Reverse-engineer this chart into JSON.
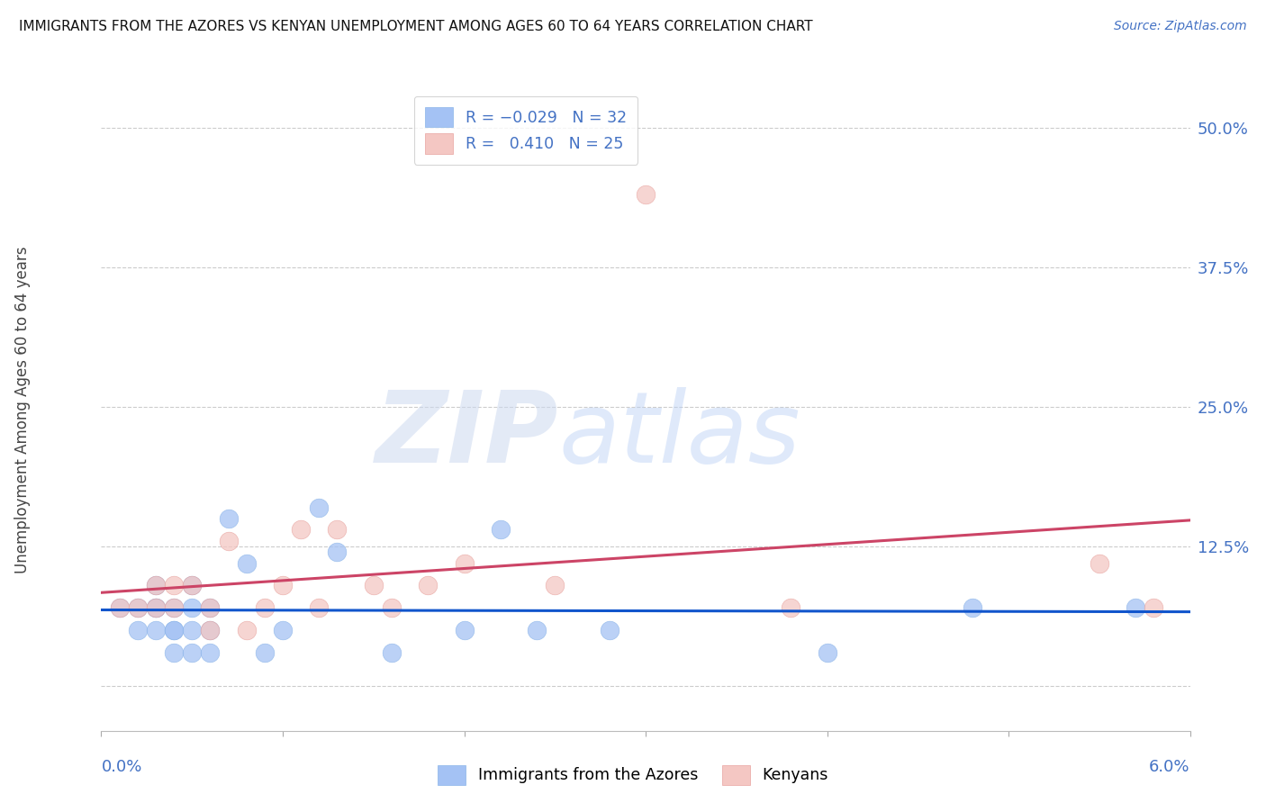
{
  "title": "IMMIGRANTS FROM THE AZORES VS KENYAN UNEMPLOYMENT AMONG AGES 60 TO 64 YEARS CORRELATION CHART",
  "source": "Source: ZipAtlas.com",
  "ylabel": "Unemployment Among Ages 60 to 64 years",
  "yticks": [
    0.0,
    0.125,
    0.25,
    0.375,
    0.5
  ],
  "ytick_labels": [
    "",
    "12.5%",
    "25.0%",
    "37.5%",
    "50.0%"
  ],
  "xlim": [
    0.0,
    0.06
  ],
  "ylim": [
    -0.04,
    0.535
  ],
  "R_blue": -0.029,
  "N_blue": 32,
  "R_pink": 0.41,
  "N_pink": 25,
  "blue_color": "#a4c2f4",
  "pink_color": "#f4c7c3",
  "blue_line_color": "#1155cc",
  "pink_line_color": "#cc4466",
  "legend_label_blue": "Immigrants from the Azores",
  "legend_label_pink": "Kenyans",
  "blue_scatter_x": [
    0.001,
    0.002,
    0.002,
    0.003,
    0.003,
    0.003,
    0.003,
    0.004,
    0.004,
    0.004,
    0.004,
    0.005,
    0.005,
    0.005,
    0.005,
    0.006,
    0.006,
    0.006,
    0.007,
    0.008,
    0.009,
    0.01,
    0.012,
    0.013,
    0.016,
    0.02,
    0.022,
    0.024,
    0.028,
    0.04,
    0.048,
    0.057
  ],
  "blue_scatter_y": [
    0.07,
    0.07,
    0.05,
    0.05,
    0.07,
    0.09,
    0.07,
    0.05,
    0.03,
    0.05,
    0.07,
    0.03,
    0.05,
    0.07,
    0.09,
    0.03,
    0.05,
    0.07,
    0.15,
    0.11,
    0.03,
    0.05,
    0.16,
    0.12,
    0.03,
    0.05,
    0.14,
    0.05,
    0.05,
    0.03,
    0.07,
    0.07
  ],
  "pink_scatter_x": [
    0.001,
    0.002,
    0.003,
    0.003,
    0.004,
    0.004,
    0.005,
    0.006,
    0.006,
    0.007,
    0.008,
    0.009,
    0.01,
    0.011,
    0.012,
    0.013,
    0.015,
    0.016,
    0.018,
    0.02,
    0.025,
    0.03,
    0.038,
    0.055,
    0.058
  ],
  "pink_scatter_y": [
    0.07,
    0.07,
    0.09,
    0.07,
    0.07,
    0.09,
    0.09,
    0.05,
    0.07,
    0.13,
    0.05,
    0.07,
    0.09,
    0.14,
    0.07,
    0.14,
    0.09,
    0.07,
    0.09,
    0.11,
    0.09,
    0.44,
    0.07,
    0.11,
    0.07
  ]
}
